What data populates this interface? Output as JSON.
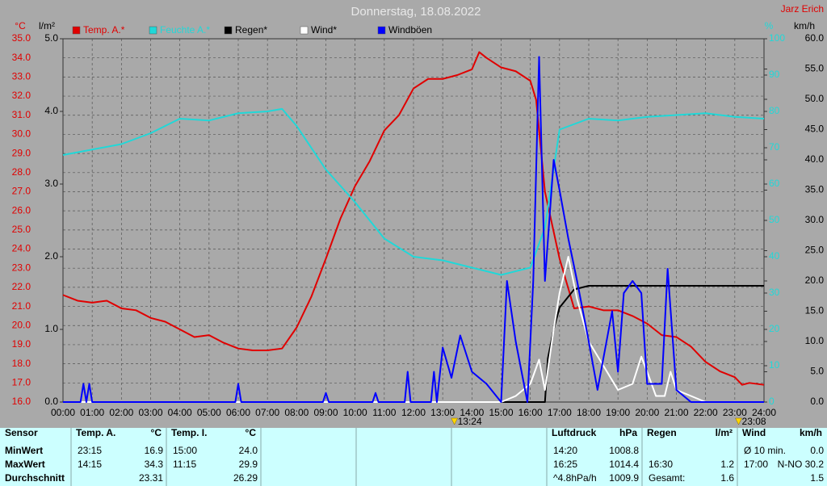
{
  "chart_data": {
    "type": "line",
    "title": "Donnerstag, 18.08.2022",
    "owner": "Jarz Erich",
    "xlim": [
      0,
      24
    ],
    "xticks": [
      {
        "value": 0,
        "label": "00:00"
      },
      {
        "value": 1,
        "label": "01:00"
      },
      {
        "value": 2,
        "label": "02:00"
      },
      {
        "value": 3,
        "label": "03:00"
      },
      {
        "value": 4,
        "label": "04:00"
      },
      {
        "value": 5,
        "label": "05:00"
      },
      {
        "value": 6,
        "label": "06:00"
      },
      {
        "value": 7,
        "label": "07:00"
      },
      {
        "value": 8,
        "label": "08:00"
      },
      {
        "value": 9,
        "label": "09:00"
      },
      {
        "value": 10,
        "label": "10:00"
      },
      {
        "value": 11,
        "label": "11:00"
      },
      {
        "value": 12,
        "label": "12:00"
      },
      {
        "value": 13,
        "label": "13:00"
      },
      {
        "value": 14,
        "label": "14:00"
      },
      {
        "value": 15,
        "label": "15:00"
      },
      {
        "value": 16,
        "label": "16:00"
      },
      {
        "value": 17,
        "label": "17:00"
      },
      {
        "value": 18,
        "label": "18:00"
      },
      {
        "value": 19,
        "label": "19:00"
      },
      {
        "value": 20,
        "label": "20:00"
      },
      {
        "value": 21,
        "label": "21:00"
      },
      {
        "value": 22,
        "label": "22:00"
      },
      {
        "value": 23,
        "label": "23:00"
      },
      {
        "value": 24,
        "label": "24:00"
      }
    ],
    "ylabel": "°C",
    "ylim": [
      16,
      35
    ],
    "yticks": [
      {
        "value": 16,
        "label": "16.0"
      },
      {
        "value": 17,
        "label": "17.0"
      },
      {
        "value": 18,
        "label": "18.0"
      },
      {
        "value": 19,
        "label": "19.0"
      },
      {
        "value": 20,
        "label": "20.0"
      },
      {
        "value": 21,
        "label": "21.0"
      },
      {
        "value": 22,
        "label": "22.0"
      },
      {
        "value": 23,
        "label": "23.0"
      },
      {
        "value": 24,
        "label": "24.0"
      },
      {
        "value": 25,
        "label": "25.0"
      },
      {
        "value": 26,
        "label": "26.0"
      },
      {
        "value": 27,
        "label": "27.0"
      },
      {
        "value": 28,
        "label": "28.0"
      },
      {
        "value": 29,
        "label": "29.0"
      },
      {
        "value": 30,
        "label": "30.0"
      },
      {
        "value": 31,
        "label": "31.0"
      },
      {
        "value": 32,
        "label": "32.0"
      },
      {
        "value": 33,
        "label": "33.0"
      },
      {
        "value": 34,
        "label": "34.0"
      },
      {
        "value": 35,
        "label": "35.0"
      }
    ],
    "y2label": "l/m²",
    "y2lim": [
      0,
      5
    ],
    "y2ticks": [
      {
        "value": 0,
        "label": "0.0"
      },
      {
        "value": 1,
        "label": "1.0"
      },
      {
        "value": 2,
        "label": "2.0"
      },
      {
        "value": 3,
        "label": "3.0"
      },
      {
        "value": 4,
        "label": "4.0"
      },
      {
        "value": 5,
        "label": "5.0"
      }
    ],
    "y3label": "%",
    "y3lim": [
      0,
      100
    ],
    "y3ticks": [
      0,
      10,
      20,
      30,
      40,
      50,
      60,
      70,
      80,
      90,
      100
    ],
    "y4label": "km/h",
    "y4lim": [
      0,
      60
    ],
    "y4ticks": [
      {
        "value": 0,
        "label": "0.0"
      },
      {
        "value": 5,
        "label": "5.0"
      },
      {
        "value": 10,
        "label": "10.0"
      },
      {
        "value": 15,
        "label": "15.0"
      },
      {
        "value": 20,
        "label": "20.0"
      },
      {
        "value": 25,
        "label": "25.0"
      },
      {
        "value": 30,
        "label": "30.0"
      },
      {
        "value": 35,
        "label": "35.0"
      },
      {
        "value": 40,
        "label": "40.0"
      },
      {
        "value": 45,
        "label": "45.0"
      },
      {
        "value": 50,
        "label": "50.0"
      },
      {
        "value": 55,
        "label": "55.0"
      },
      {
        "value": 60,
        "label": "60.0"
      }
    ],
    "grid": true,
    "series": [
      {
        "name": "Temp. A.*",
        "color": "#e00000",
        "axis": "y",
        "x": [
          0,
          0.5,
          1,
          1.5,
          2,
          2.5,
          3,
          3.5,
          4,
          4.5,
          5,
          5.5,
          6,
          6.5,
          7,
          7.5,
          8,
          8.5,
          9,
          9.5,
          10,
          10.5,
          11,
          11.5,
          12,
          12.5,
          13,
          13.5,
          14,
          14.25,
          14.5,
          15,
          15.5,
          16,
          16.2,
          16.5,
          17,
          17.5,
          18,
          18.5,
          19,
          19.5,
          20,
          20.5,
          21,
          21.5,
          22,
          22.5,
          23,
          23.25,
          23.5,
          24
        ],
        "values": [
          21.6,
          21.3,
          21.2,
          21.3,
          20.9,
          20.8,
          20.4,
          20.2,
          19.8,
          19.4,
          19.5,
          19.1,
          18.8,
          18.7,
          18.7,
          18.8,
          19.9,
          21.5,
          23.5,
          25.6,
          27.3,
          28.6,
          30.2,
          31.0,
          32.4,
          32.9,
          32.9,
          33.1,
          33.4,
          34.3,
          34.0,
          33.5,
          33.3,
          32.8,
          31.8,
          27.0,
          23.5,
          20.9,
          21.0,
          20.8,
          20.8,
          20.5,
          20.1,
          19.5,
          19.4,
          18.9,
          18.1,
          17.6,
          17.3,
          16.9,
          17.0,
          16.9
        ]
      },
      {
        "name": "Feuchte A.*",
        "color": "#20d8d8",
        "axis": "y3",
        "x": [
          0,
          1,
          2,
          3,
          4,
          5,
          6,
          7,
          7.5,
          8,
          9,
          10,
          11,
          12,
          13,
          14,
          15,
          16,
          16.5,
          17,
          18,
          19,
          20,
          21,
          22,
          23,
          24
        ],
        "values": [
          68,
          69.5,
          71,
          74,
          78,
          77.5,
          79.5,
          80,
          80.7,
          76,
          64,
          55,
          45,
          40,
          39,
          37,
          35,
          37,
          48,
          75,
          78,
          77.5,
          78.5,
          79,
          79.5,
          78.5,
          78
        ]
      },
      {
        "name": "Regen*",
        "color": "#000000",
        "axis": "y2",
        "x": [
          0,
          16.5,
          16.6,
          16.8,
          17,
          17.5,
          18,
          24
        ],
        "values": [
          0,
          0,
          0.6,
          1.0,
          1.3,
          1.55,
          1.6,
          1.6
        ]
      },
      {
        "name": "Wind*",
        "color": "#ffffff",
        "axis": "y4",
        "x": [
          0,
          15,
          15.5,
          16,
          16.3,
          16.5,
          16.8,
          17,
          17.3,
          17.6,
          18,
          18.5,
          19,
          19.5,
          19.8,
          20,
          20.3,
          20.6,
          20.8,
          21,
          21.5,
          22,
          24
        ],
        "values": [
          0,
          0,
          1,
          3,
          7,
          2,
          12,
          18,
          24,
          17,
          10,
          6,
          2,
          3,
          7.5,
          5,
          1,
          1,
          5,
          2,
          1,
          0,
          0
        ]
      },
      {
        "name": "Windböen",
        "color": "#0000ff",
        "axis": "y4",
        "x": [
          0,
          0.6,
          0.7,
          0.8,
          0.9,
          1,
          5.9,
          6,
          6.1,
          8.9,
          9,
          9.1,
          10.6,
          10.7,
          10.8,
          11.7,
          11.8,
          11.9,
          12.6,
          12.7,
          12.8,
          13,
          13.3,
          13.6,
          14,
          14.5,
          15,
          15.2,
          15.5,
          15.9,
          16.1,
          16.3,
          16.5,
          16.8,
          17,
          17.3,
          17.6,
          18,
          18.3,
          18.8,
          19,
          19.2,
          19.5,
          19.8,
          20,
          20.5,
          20.7,
          21,
          21.5,
          24
        ],
        "values": [
          0,
          0,
          3,
          0,
          3,
          0,
          0,
          3,
          0,
          0,
          1.5,
          0,
          0,
          1.5,
          0,
          0,
          5,
          0,
          0,
          5,
          0,
          9,
          4,
          11,
          5,
          3,
          0,
          20,
          10,
          0,
          20,
          57,
          20,
          40,
          35,
          27,
          20,
          10,
          2,
          15,
          5,
          18,
          20,
          18,
          3,
          3,
          22,
          2,
          0,
          0
        ]
      }
    ],
    "annotations": [
      {
        "x": 13.4,
        "label": "13:24"
      },
      {
        "x": 23.13,
        "label": "23:08"
      }
    ]
  },
  "table": {
    "row_labels": [
      "Sensor",
      "MinWert",
      "MaxWert",
      "Durchschnitt"
    ],
    "groups": [
      {
        "title": "Temp. A.",
        "unit": "°C",
        "rows": [
          {
            "time": "23:15",
            "value": "16.9"
          },
          {
            "time": "14:15",
            "value": "34.3"
          },
          {
            "value": "23.31"
          }
        ]
      },
      {
        "title": "Temp. I.",
        "unit": "°C",
        "rows": [
          {
            "time": "15:00",
            "value": "24.0"
          },
          {
            "time": "11:15",
            "value": "29.9"
          },
          {
            "value": "26.29"
          }
        ]
      },
      {
        "title": "Luftdruck",
        "unit": "hPa",
        "rows": [
          {
            "time": "14:20",
            "value": "1008.8"
          },
          {
            "time": "16:25",
            "value": "1014.4"
          },
          {
            "time": "^4.8hPa/h",
            "value": "1009.9"
          }
        ]
      },
      {
        "title": "Regen",
        "unit": "l/m²",
        "rows": [
          {},
          {
            "time": "16:30",
            "value": "1.2"
          },
          {
            "time": "Gesamt:",
            "value": "1.6"
          }
        ]
      },
      {
        "title": "Wind",
        "unit": "km/h",
        "rows": [
          {
            "time": "Ø 10 min.",
            "value": "0.0"
          },
          {
            "time": "17:00",
            "value": "N-NO 30.2"
          },
          {
            "value": "1.5"
          }
        ]
      }
    ]
  }
}
